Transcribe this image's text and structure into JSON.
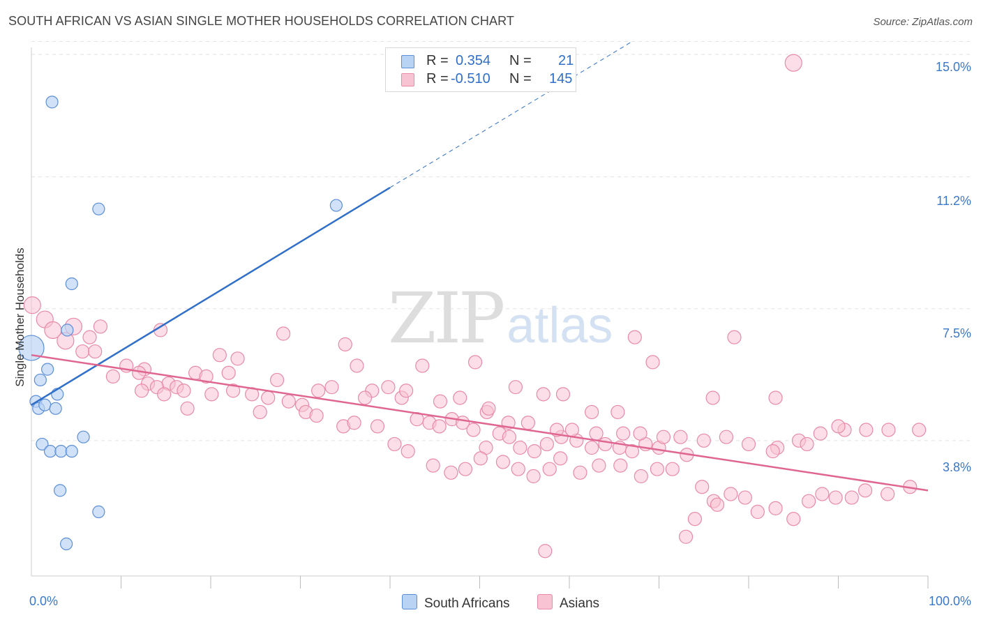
{
  "title": "SOUTH AFRICAN VS ASIAN SINGLE MOTHER HOUSEHOLDS CORRELATION CHART",
  "source": "Source: ZipAtlas.com",
  "watermark": {
    "zip": "ZIP",
    "atlas": "atlas"
  },
  "legend_top": {
    "rows": [
      {
        "r_label": "R =",
        "r_value": "0.354",
        "n_label": "N =",
        "n_value": "21"
      },
      {
        "r_label": "R =",
        "r_value": "-0.510",
        "n_label": "N =",
        "n_value": "145"
      }
    ]
  },
  "legend_bottom": [
    "South Africans",
    "Asians"
  ],
  "colors": {
    "south_africans_fill": "#b9d3f5",
    "south_africans_stroke": "#5b8ed6",
    "south_africans_line": "#2f6fc9",
    "asians_fill": "#f8c3d3",
    "asians_stroke": "#e88aa8",
    "asians_line": "#e06692",
    "tick_label": "#3a78c9",
    "grid": "#e2e2e2"
  },
  "chart_data": {
    "type": "scatter",
    "title": "SOUTH AFRICAN VS ASIAN SINGLE MOTHER HOUSEHOLDS CORRELATION CHART",
    "xlabel": "",
    "ylabel": "Single Mother Households",
    "xlim": [
      0,
      100
    ],
    "ylim": [
      0,
      15.5
    ],
    "y_ticks": [
      3.8,
      7.5,
      11.2,
      15.0
    ],
    "y_tick_labels": [
      "3.8%",
      "7.5%",
      "11.2%",
      "15.0%"
    ],
    "x_tick_labels": [
      "0.0%",
      "100.0%"
    ],
    "grid": "horizontal dashed",
    "legend": "bottom-center",
    "series": [
      {
        "name": "South Africans",
        "R": 0.354,
        "N": 21,
        "trend": {
          "x": [
            0,
            40
          ],
          "y": [
            4.8,
            10.9
          ],
          "dashed_extension_to": [
            67,
            15.0
          ]
        },
        "points": [
          [
            2.3,
            13.3
          ],
          [
            7.5,
            10.3
          ],
          [
            34.0,
            10.4
          ],
          [
            4.5,
            8.2
          ],
          [
            0.0,
            6.4
          ],
          [
            4.0,
            6.9
          ],
          [
            1.8,
            5.8
          ],
          [
            1.0,
            5.5
          ],
          [
            2.9,
            5.1
          ],
          [
            0.5,
            4.9
          ],
          [
            0.8,
            4.7
          ],
          [
            1.5,
            4.8
          ],
          [
            2.7,
            4.7
          ],
          [
            5.8,
            3.9
          ],
          [
            1.2,
            3.7
          ],
          [
            2.1,
            3.5
          ],
          [
            3.3,
            3.5
          ],
          [
            4.5,
            3.5
          ],
          [
            3.2,
            2.4
          ],
          [
            7.5,
            1.8
          ],
          [
            3.9,
            0.9
          ]
        ]
      },
      {
        "name": "Asians",
        "R": -0.51,
        "N": 145,
        "trend": {
          "x": [
            0,
            100
          ],
          "y": [
            6.2,
            2.4
          ]
        },
        "points": [
          [
            85.0,
            14.4
          ],
          [
            0.1,
            7.6
          ],
          [
            1.5,
            7.2
          ],
          [
            2.4,
            6.9
          ],
          [
            3.8,
            6.6
          ],
          [
            4.7,
            7.0
          ],
          [
            7.7,
            7.0
          ],
          [
            14.4,
            6.9
          ],
          [
            28.1,
            6.8
          ],
          [
            6.5,
            6.7
          ],
          [
            5.7,
            6.3
          ],
          [
            7.1,
            6.3
          ],
          [
            21.0,
            6.2
          ],
          [
            23.0,
            6.1
          ],
          [
            10.6,
            5.9
          ],
          [
            12.6,
            5.8
          ],
          [
            9.1,
            5.6
          ],
          [
            12.0,
            5.7
          ],
          [
            18.3,
            5.7
          ],
          [
            19.5,
            5.6
          ],
          [
            22.0,
            5.7
          ],
          [
            27.4,
            5.5
          ],
          [
            13.0,
            5.4
          ],
          [
            15.3,
            5.4
          ],
          [
            16.2,
            5.3
          ],
          [
            17.0,
            5.2
          ],
          [
            14.0,
            5.3
          ],
          [
            12.3,
            5.2
          ],
          [
            14.8,
            5.1
          ],
          [
            20.1,
            5.1
          ],
          [
            22.5,
            5.2
          ],
          [
            24.6,
            5.1
          ],
          [
            26.4,
            5.0
          ],
          [
            28.7,
            4.9
          ],
          [
            30.2,
            4.8
          ],
          [
            32.0,
            5.2
          ],
          [
            17.4,
            4.7
          ],
          [
            25.5,
            4.6
          ],
          [
            30.6,
            4.6
          ],
          [
            34.8,
            4.2
          ],
          [
            36.0,
            4.3
          ],
          [
            38.6,
            4.2
          ],
          [
            36.3,
            5.9
          ],
          [
            35.0,
            6.5
          ],
          [
            38.0,
            5.2
          ],
          [
            41.3,
            5.0
          ],
          [
            43.0,
            4.4
          ],
          [
            44.4,
            4.3
          ],
          [
            45.5,
            4.2
          ],
          [
            46.9,
            4.4
          ],
          [
            48.1,
            4.3
          ],
          [
            49.3,
            4.1
          ],
          [
            50.7,
            3.6
          ],
          [
            52.2,
            4.0
          ],
          [
            53.3,
            3.9
          ],
          [
            54.5,
            3.6
          ],
          [
            56.1,
            3.5
          ],
          [
            57.5,
            3.7
          ],
          [
            59.1,
            3.9
          ],
          [
            60.8,
            3.8
          ],
          [
            62.5,
            3.6
          ],
          [
            64.0,
            3.7
          ],
          [
            65.6,
            3.6
          ],
          [
            67.0,
            3.5
          ],
          [
            68.5,
            3.7
          ],
          [
            70.0,
            3.6
          ],
          [
            40.5,
            3.7
          ],
          [
            42.0,
            3.5
          ],
          [
            44.8,
            3.1
          ],
          [
            46.8,
            2.9
          ],
          [
            48.4,
            3.0
          ],
          [
            50.1,
            3.3
          ],
          [
            52.6,
            3.2
          ],
          [
            54.3,
            3.0
          ],
          [
            56.0,
            2.8
          ],
          [
            57.8,
            3.0
          ],
          [
            59.0,
            3.3
          ],
          [
            61.2,
            2.9
          ],
          [
            63.3,
            3.1
          ],
          [
            65.7,
            3.1
          ],
          [
            68.0,
            2.8
          ],
          [
            69.8,
            3.0
          ],
          [
            71.5,
            3.0
          ],
          [
            73.1,
            3.4
          ],
          [
            74.8,
            2.5
          ],
          [
            76.1,
            2.1
          ],
          [
            78.0,
            2.3
          ],
          [
            79.6,
            2.2
          ],
          [
            81.0,
            1.8
          ],
          [
            83.0,
            1.9
          ],
          [
            85.0,
            1.6
          ],
          [
            86.7,
            2.1
          ],
          [
            88.2,
            2.3
          ],
          [
            89.7,
            2.2
          ],
          [
            91.5,
            2.2
          ],
          [
            93.0,
            2.4
          ],
          [
            95.5,
            2.3
          ],
          [
            98.0,
            2.5
          ],
          [
            76.5,
            2.0
          ],
          [
            74.0,
            1.6
          ],
          [
            73.0,
            1.1
          ],
          [
            57.3,
            0.7
          ],
          [
            49.5,
            6.0
          ],
          [
            43.6,
            5.9
          ],
          [
            41.8,
            5.2
          ],
          [
            45.6,
            4.9
          ],
          [
            47.8,
            5.0
          ],
          [
            50.8,
            4.6
          ],
          [
            53.2,
            4.3
          ],
          [
            55.4,
            4.3
          ],
          [
            58.6,
            4.1
          ],
          [
            60.3,
            4.1
          ],
          [
            63.0,
            4.0
          ],
          [
            66.0,
            4.0
          ],
          [
            67.9,
            4.0
          ],
          [
            70.5,
            3.9
          ],
          [
            72.4,
            3.9
          ],
          [
            75.0,
            3.8
          ],
          [
            77.5,
            3.9
          ],
          [
            80.0,
            3.7
          ],
          [
            83.2,
            3.6
          ],
          [
            85.6,
            3.8
          ],
          [
            88.0,
            4.0
          ],
          [
            90.7,
            4.1
          ],
          [
            93.1,
            4.1
          ],
          [
            95.6,
            4.1
          ],
          [
            99.0,
            4.1
          ],
          [
            90.0,
            4.2
          ],
          [
            86.5,
            3.7
          ],
          [
            82.7,
            3.5
          ],
          [
            67.3,
            6.7
          ],
          [
            69.3,
            6.0
          ],
          [
            78.4,
            6.7
          ],
          [
            76.0,
            5.0
          ],
          [
            83.0,
            5.0
          ],
          [
            51.0,
            4.7
          ],
          [
            65.4,
            4.6
          ],
          [
            62.5,
            4.6
          ],
          [
            59.3,
            5.1
          ],
          [
            57.1,
            5.1
          ],
          [
            54.0,
            5.3
          ],
          [
            39.8,
            5.3
          ],
          [
            37.2,
            5.0
          ],
          [
            33.5,
            5.3
          ],
          [
            31.8,
            4.5
          ]
        ]
      }
    ]
  }
}
